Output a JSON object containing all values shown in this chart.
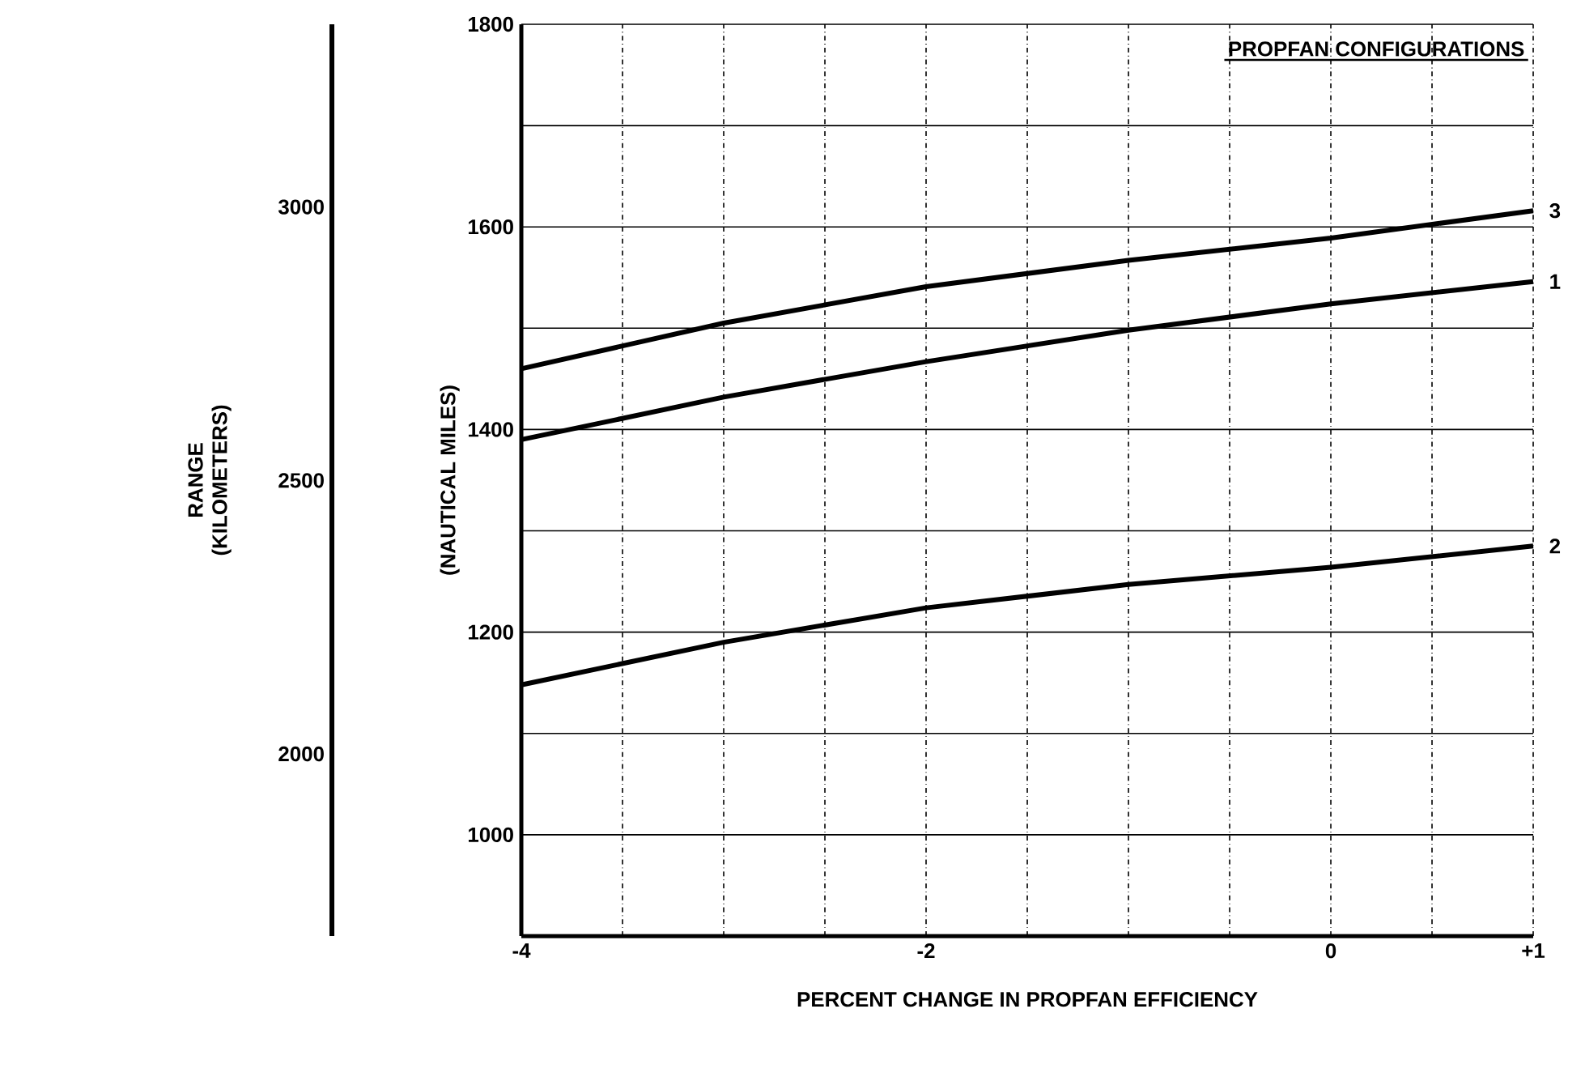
{
  "chart_data": {
    "type": "line",
    "xlabel": "PERCENT CHANGE IN PROPFAN EFFICIENCY",
    "ylabel": "(NAUTICAL MILES)",
    "y2label": "RANGE (KILOMETERS)",
    "annotations": [
      "PROPFAN CONFIGURATIONS"
    ],
    "x": [
      -4,
      -3,
      -2,
      -1,
      0,
      1
    ],
    "series": [
      {
        "name": "3",
        "color": "#000000",
        "values": [
          1460,
          1505,
          1541,
          1567,
          1589,
          1616
        ]
      },
      {
        "name": "1",
        "color": "#000000",
        "values": [
          1390,
          1432,
          1467,
          1498,
          1524,
          1546
        ]
      },
      {
        "name": "2",
        "color": "#000000",
        "values": [
          1148,
          1190,
          1224,
          1247,
          1264,
          1285
        ]
      }
    ],
    "xlim": [
      -4,
      1
    ],
    "xticks": [
      -4,
      {
        "value": -3.5,
        "label": null
      },
      {
        "value": -3,
        "label": null
      },
      {
        "value": -2.5,
        "label": null
      },
      -2,
      {
        "value": -1.5,
        "label": null
      },
      {
        "value": -1,
        "label": null
      },
      {
        "value": -0.5,
        "label": null
      },
      0,
      {
        "value": 0.5,
        "label": null
      },
      {
        "value": 1,
        "label": "+1"
      }
    ],
    "ylim": [
      900,
      1800
    ],
    "yticks": [
      {
        "value": 900,
        "label": null
      },
      1000,
      {
        "value": 1100,
        "label": null
      },
      1200,
      {
        "value": 1300,
        "label": null
      },
      1400,
      {
        "value": 1500,
        "label": null
      },
      1600,
      {
        "value": 1700,
        "label": null
      },
      1800
    ],
    "y2lim": [
      1667,
      3334
    ],
    "y2ticks": [
      2000,
      2500,
      3000
    ],
    "grid": true,
    "marker": "none",
    "line_style": "solid"
  }
}
